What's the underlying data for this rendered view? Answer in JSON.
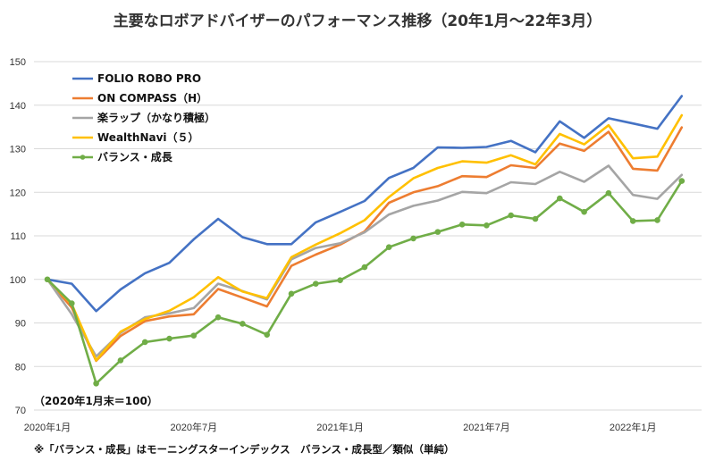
{
  "chart_data": {
    "type": "line",
    "title": "主要なロボアドバイザーのパフォーマンス推移（20年1月～22年3月）",
    "base_note": "（2020年1月末＝100）",
    "footnote": "※「バランス・成長」はモーニングスターインデックス　バランス・成長型／類似（単純）",
    "ylim": [
      70,
      150
    ],
    "yticks": [
      70,
      80,
      90,
      100,
      110,
      120,
      130,
      140,
      150
    ],
    "x": [
      "2020-01",
      "2020-02",
      "2020-03",
      "2020-04",
      "2020-05",
      "2020-06",
      "2020-07",
      "2020-08",
      "2020-09",
      "2020-10",
      "2020-11",
      "2020-12",
      "2021-01",
      "2021-02",
      "2021-03",
      "2021-04",
      "2021-05",
      "2021-06",
      "2021-07",
      "2021-08",
      "2021-09",
      "2021-10",
      "2021-11",
      "2021-12",
      "2022-01",
      "2022-02",
      "2022-03"
    ],
    "xtick_labels": [
      {
        "index": 0,
        "label": "2020年1月"
      },
      {
        "index": 6,
        "label": "2020年7月"
      },
      {
        "index": 12,
        "label": "2021年1月"
      },
      {
        "index": 18,
        "label": "2021年7月"
      },
      {
        "index": 24,
        "label": "2022年1月"
      }
    ],
    "legend_position": "top-left",
    "grid": true,
    "series": [
      {
        "name": "FOLIO ROBO PRO",
        "color": "#4472c4",
        "marker": false,
        "values": [
          100,
          99,
          92.7,
          97.7,
          101.4,
          103.8,
          109.2,
          113.9,
          109.7,
          108.1,
          108.1,
          113.1,
          115.5,
          118.0,
          123.3,
          125.6,
          130.3,
          130.2,
          130.4,
          131.8,
          129.2,
          136.3,
          132.5,
          137.0,
          135.8,
          134.6,
          142.1
        ]
      },
      {
        "name": "ON COMPASS（H）",
        "color": "#ed7d31",
        "marker": false,
        "values": [
          100,
          93.5,
          81.3,
          87.0,
          90.4,
          91.5,
          92.0,
          97.8,
          95.8,
          93.8,
          103.1,
          105.7,
          108.0,
          111.0,
          117.6,
          120.0,
          121.4,
          123.7,
          123.5,
          126.2,
          125.6,
          131.2,
          129.5,
          133.9,
          125.4,
          125.0,
          134.9
        ]
      },
      {
        "name": "楽ラップ（かなり積極）",
        "color": "#a5a5a5",
        "marker": false,
        "values": [
          100,
          92.0,
          82.3,
          87.7,
          91.3,
          92.2,
          93.4,
          99.0,
          97.3,
          95.4,
          104.6,
          107.2,
          108.3,
          110.8,
          114.9,
          116.9,
          118.1,
          120.1,
          119.8,
          122.3,
          121.9,
          124.7,
          122.4,
          126.1,
          119.4,
          118.5,
          124.0
        ]
      },
      {
        "name": "WealthNavi（５）",
        "color": "#ffc000",
        "marker": false,
        "values": [
          100,
          94.3,
          81.4,
          88.0,
          90.9,
          92.8,
          95.9,
          100.5,
          97.2,
          95.7,
          105.1,
          108.0,
          110.6,
          113.6,
          118.9,
          123.2,
          125.6,
          127.1,
          126.8,
          128.5,
          126.4,
          133.4,
          131.0,
          135.4,
          127.8,
          128.2,
          137.7
        ]
      },
      {
        "name": "バランス・成長",
        "color": "#70ad47",
        "marker": true,
        "values": [
          100,
          94.5,
          76.1,
          81.4,
          85.6,
          86.4,
          87.1,
          91.3,
          89.8,
          87.3,
          96.7,
          99.0,
          99.8,
          102.8,
          107.4,
          109.4,
          110.9,
          112.6,
          112.4,
          114.7,
          113.9,
          118.6,
          115.5,
          119.8,
          113.4,
          113.6,
          122.6
        ]
      }
    ]
  }
}
